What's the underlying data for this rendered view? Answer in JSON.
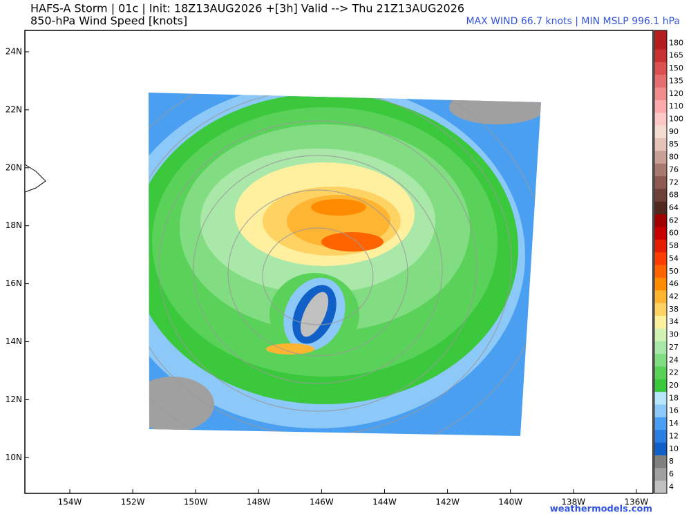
{
  "header": {
    "title": "HAFS-A Storm | 01c | Init: 18Z13AUG2026 +[3h] Valid --> Thu 21Z13AUG2026",
    "subtitle": "850-hPa Wind Speed [knots]",
    "stats": "MAX WIND 66.7 knots | MIN MSLP 996.1 hPa"
  },
  "map": {
    "lon_ticks": [
      "154W",
      "152W",
      "150W",
      "148W",
      "146W",
      "144W",
      "142W",
      "140W",
      "138W",
      "136W"
    ],
    "lat_ticks": [
      "24N",
      "22N",
      "20N",
      "18N",
      "16N",
      "14N",
      "12N",
      "10N"
    ]
  },
  "colorbar": {
    "levels": [
      180,
      165,
      150,
      135,
      120,
      110,
      100,
      90,
      85,
      80,
      76,
      72,
      68,
      64,
      62,
      60,
      58,
      54,
      50,
      46,
      42,
      38,
      34,
      30,
      27,
      24,
      22,
      20,
      18,
      16,
      14,
      12,
      10,
      8,
      6,
      4
    ],
    "colors": [
      "#b41e1e",
      "#c83232",
      "#dc5050",
      "#e66e6e",
      "#f08c8c",
      "#ffaaaa",
      "#ffc8c8",
      "#f5dcd2",
      "#e6c3b9",
      "#c8a096",
      "#a87a6e",
      "#8c5a50",
      "#6e4038",
      "#502820",
      "#a00000",
      "#c80000",
      "#e61e00",
      "#ff3c00",
      "#ff6400",
      "#ff8c00",
      "#ffb432",
      "#ffd264",
      "#fff0a0",
      "#d2f2b4",
      "#aae8aa",
      "#82dc82",
      "#5ad25a",
      "#3cc83c",
      "#b8e6fa",
      "#8cc8f8",
      "#4a9ff0",
      "#2a7fe0",
      "#1060c8",
      "#808080",
      "#a0a0a0",
      "#c0c0c0"
    ]
  },
  "footer": {
    "credit": "weathermodels.com"
  }
}
